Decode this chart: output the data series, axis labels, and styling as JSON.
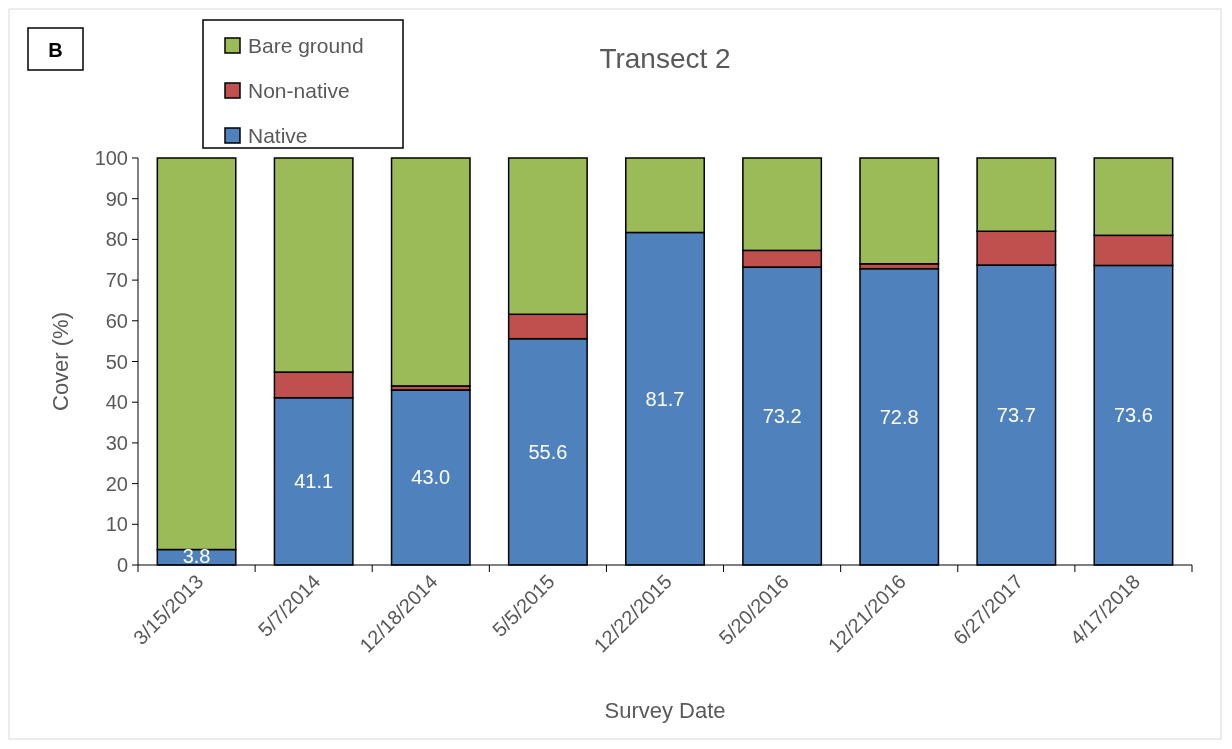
{
  "chart_data": {
    "type": "bar",
    "title": "Transect 2",
    "xlabel": "Survey Date",
    "ylabel": "Cover (%)",
    "annotations": [
      "B"
    ],
    "categories": [
      "3/15/2013",
      "5/7/2014",
      "12/18/2014",
      "5/5/2015",
      "12/22/2015",
      "5/20/2016",
      "12/21/2016",
      "6/27/2017",
      "4/17/2018"
    ],
    "stacked": true,
    "ylim": [
      0,
      100
    ],
    "yticks": [
      0,
      10,
      20,
      30,
      40,
      50,
      60,
      70,
      80,
      90,
      100
    ],
    "grid": false,
    "legend": "top left",
    "series": [
      {
        "name": "Native",
        "color": "#4f81bd",
        "values": [
          3.8,
          41.1,
          43.0,
          55.6,
          81.7,
          73.2,
          72.8,
          73.7,
          73.6
        ],
        "value_labels": [
          "3.8",
          "41.1",
          "43.0",
          "55.6",
          "81.7",
          "73.2",
          "72.8",
          "73.7",
          "73.6"
        ]
      },
      {
        "name": "Non-native",
        "color": "#c0504d",
        "values": [
          null,
          6.3,
          1.0,
          6.0,
          null,
          4.1,
          1.2,
          8.3,
          7.4
        ]
      },
      {
        "name": "Bare ground",
        "color": "#9bbb59",
        "values": [
          96.2,
          52.6,
          56.0,
          38.4,
          18.3,
          22.7,
          26.0,
          18.0,
          19.0
        ]
      }
    ]
  }
}
